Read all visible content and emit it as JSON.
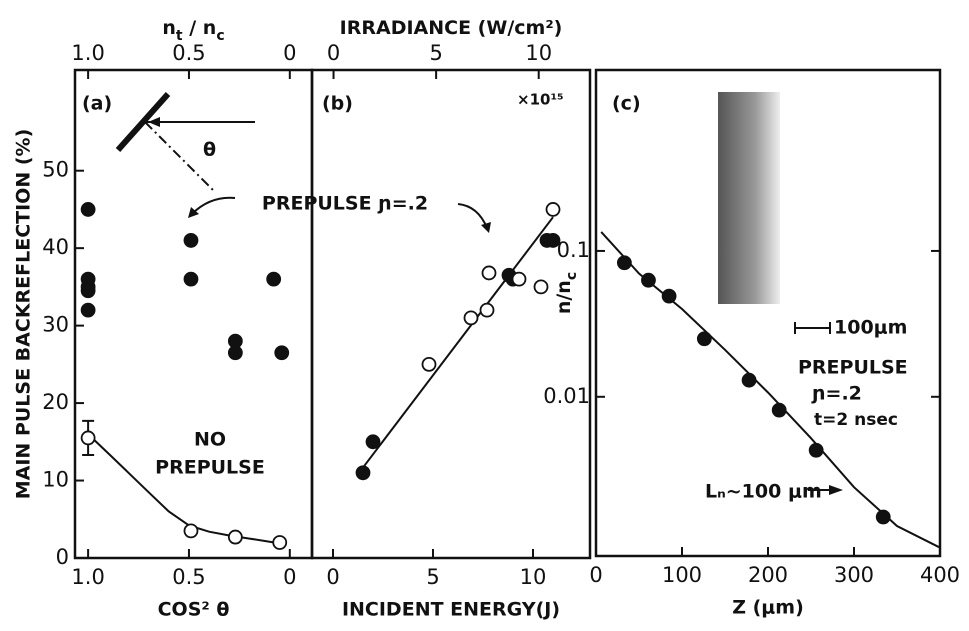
{
  "chart_data": [
    {
      "type": "scatter",
      "title": "(a)",
      "ylabel": "MAIN PULSE BACKREFLECTION (%)",
      "xlabel": "COS² θ",
      "x2label": [
        "n",
        "t",
        " / n",
        "c"
      ],
      "xlim": [
        1.065,
        -0.11
      ],
      "ylim": [
        0,
        63
      ],
      "xticks": [
        {
          "value": 1,
          "label": "1.0"
        },
        0.5,
        0
      ],
      "x2lim": [
        1.065,
        -0.11
      ],
      "x2ticks": [
        {
          "value": 1,
          "label": "1.0"
        },
        0.5,
        0
      ],
      "yticks": [
        0,
        10,
        20,
        30,
        40,
        50
      ],
      "annotations": [
        "NO",
        "PREPULSE",
        "θ",
        "PREPULSE ɲ=.2"
      ],
      "series": [
        {
          "marker": "filled",
          "color": "#111111",
          "x": [
            1.0,
            1.0,
            1.0,
            1.0,
            1.0,
            0.49,
            0.49,
            0.27,
            0.27,
            0.08,
            0.04
          ],
          "values": [
            45,
            36,
            35,
            34.5,
            32,
            41,
            36,
            28,
            26.5,
            36,
            26.5
          ]
        },
        {
          "marker": "open",
          "color": "#111111",
          "x": [
            1.0,
            0.49,
            0.27,
            0.05
          ],
          "values": [
            15.5,
            3.5,
            2.7,
            2
          ],
          "errors": [
            2.2,
            null,
            null,
            null
          ]
        }
      ],
      "curve": {
        "x": [
          1.0,
          0.9,
          0.8,
          0.7,
          0.6,
          0.5,
          0.4,
          0.3,
          0.2,
          0.1,
          0.03
        ],
        "values": [
          16,
          13.5,
          11,
          8.5,
          6,
          4.2,
          3.4,
          2.9,
          2.5,
          2.1,
          1.8
        ]
      }
    },
    {
      "type": "scatter",
      "title": "(b)",
      "xlabel": "INCIDENT ENERGY(J)",
      "x2label": [
        "IRRADIANCE (W/cm²)"
      ],
      "multiplier": "×10¹⁵",
      "xlim": [
        -1.05,
        12.85
      ],
      "ylim": [
        0,
        63
      ],
      "xticks": [
        0,
        5,
        10
      ],
      "x2lim": [
        -1.05,
        12.5
      ],
      "x2ticks": [
        0,
        5,
        10
      ],
      "series": [
        {
          "marker": "filled",
          "color": "#111111",
          "x": [
            1.5,
            2,
            8.8,
            9,
            10.7,
            11
          ],
          "values": [
            11,
            15,
            36.5,
            36,
            41,
            41
          ]
        },
        {
          "marker": "open",
          "color": "#111111",
          "x": [
            4.8,
            6.9,
            7.7,
            7.8,
            9.3,
            10.4,
            11
          ],
          "values": [
            25,
            31,
            32,
            36.8,
            36,
            35,
            45
          ]
        }
      ],
      "curve": {
        "x": [
          1.3,
          11
        ],
        "values": [
          11,
          44
        ]
      }
    },
    {
      "type": "scatter",
      "title": "(c)",
      "xlabel": "Z (μm)",
      "ylabel": [
        "n/n",
        "c"
      ],
      "log_y": true,
      "xlim": [
        0,
        400
      ],
      "ylim": [
        0.00081,
        1.74
      ],
      "xticks": [
        0,
        100,
        200,
        300,
        400
      ],
      "yticks": [
        0.1,
        0.01
      ],
      "annotations": [
        "100μm",
        "PREPULSE",
        "ɲ=.2",
        "t=2 nsec",
        "Lₙ~100 μm"
      ],
      "series": [
        {
          "marker": "filled",
          "color": "#111111",
          "x": [
            33,
            61,
            85,
            126,
            178,
            213,
            256,
            334
          ],
          "values": [
            0.083,
            0.063,
            0.049,
            0.025,
            0.013,
            0.0081,
            0.0043,
            0.0015
          ]
        }
      ],
      "curve": {
        "x": [
          6,
          50,
          100,
          150,
          200,
          250,
          300,
          350,
          399
        ],
        "values": [
          0.135,
          0.07,
          0.04,
          0.021,
          0.0107,
          0.0052,
          0.0024,
          0.0013,
          0.00093
        ]
      }
    }
  ]
}
